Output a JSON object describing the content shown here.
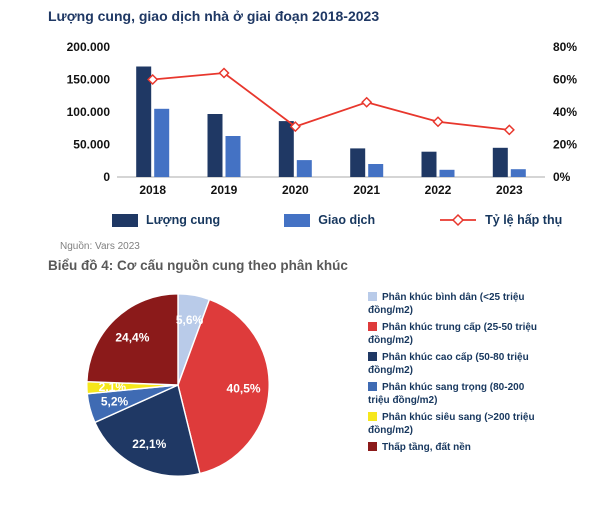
{
  "source_note": "Nguồn: Vars 2023",
  "colors": {
    "supply_bar": "#1F3864",
    "transaction_bar": "#4472C4",
    "absorption_line": "#E8372D",
    "title_navy": "#1F3864",
    "subtitle_gray": "#595959"
  },
  "chart_data": [
    {
      "type": "bar",
      "title": "Lượng cung, giao dịch nhà ở giai đoạn 2018-2023",
      "categories": [
        "2018",
        "2019",
        "2020",
        "2021",
        "2022",
        "2023"
      ],
      "series": [
        {
          "name": "Lượng cung",
          "chart": "bar",
          "axis": "left",
          "color": "#1F3864",
          "values": [
            170000,
            97000,
            86000,
            44000,
            39000,
            45000
          ]
        },
        {
          "name": "Giao dịch",
          "chart": "bar",
          "axis": "left",
          "color": "#4472C4",
          "values": [
            105000,
            63000,
            26000,
            20000,
            11000,
            12000
          ]
        },
        {
          "name": "Tỷ lệ hấp thụ",
          "chart": "line",
          "axis": "right",
          "color": "#E8372D",
          "values": [
            60,
            64,
            31,
            46,
            34,
            29
          ]
        }
      ],
      "left_axis": {
        "min": 0,
        "max": 200000,
        "tick_labels": [
          "0",
          "50.000",
          "100.000",
          "150.000",
          "200.000"
        ]
      },
      "right_axis": {
        "min": 0,
        "max": 80,
        "tick_labels": [
          "0%",
          "20%",
          "40%",
          "60%",
          "80%"
        ]
      },
      "grid": false,
      "legend_position": "bottom"
    },
    {
      "type": "pie",
      "title": "Biểu đồ 4: Cơ cấu nguồn cung theo phân khúc",
      "start_angle_deg": 0,
      "direction": "clockwise",
      "legend_position": "right",
      "slices": [
        {
          "label": "Phân khúc bình dân (<25 triệu đồng/m2)",
          "value": 5.6,
          "display": "5,6%",
          "color": "#B9CBE9"
        },
        {
          "label": "Phân khúc trung cấp (25-50 triệu đồng/m2)",
          "value": 40.5,
          "display": "40,5%",
          "color": "#DE3B3B"
        },
        {
          "label": "Phân khúc cao cấp (50-80 triệu đồng/m2)",
          "value": 22.1,
          "display": "22,1%",
          "color": "#1F3864"
        },
        {
          "label": "Phân khúc sang trọng (80-200 triệu đồng/m2)",
          "value": 5.2,
          "display": "5,2%",
          "color": "#3F6BB3"
        },
        {
          "label": "Phân khúc siêu sang (>200 triệu đồng/m2)",
          "value": 2.1,
          "display": "2,1%",
          "color": "#F6E71C"
        },
        {
          "label": "Thấp tầng, đất nền",
          "value": 24.4,
          "display": "24,4%",
          "color": "#8B1A1A"
        }
      ]
    }
  ]
}
